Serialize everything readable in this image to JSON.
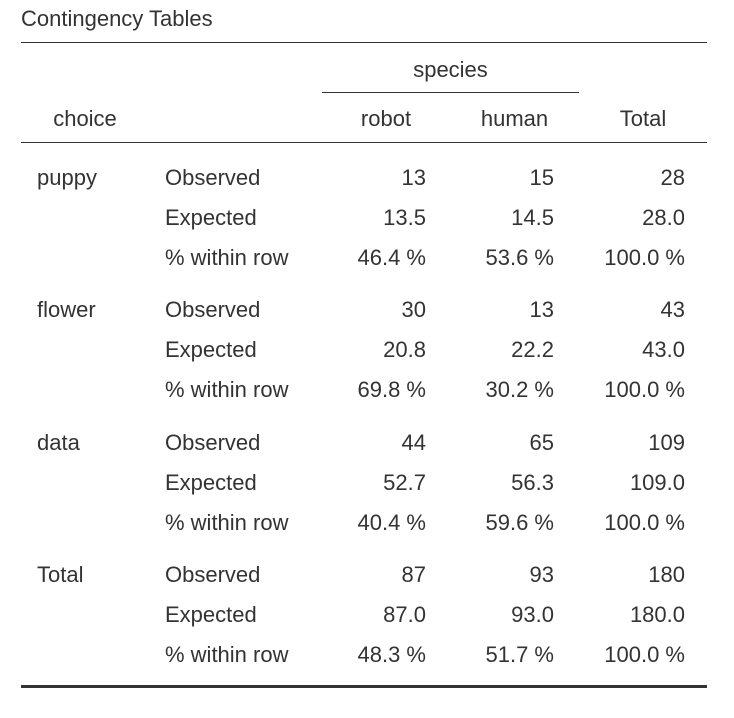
{
  "title": "Contingency Tables",
  "header": {
    "species": "species",
    "choice": "choice",
    "robot": "robot",
    "human": "human",
    "total": "Total"
  },
  "groups": [
    {
      "name": "puppy",
      "rows": [
        {
          "stat": "Observed",
          "robot": "13",
          "human": "15",
          "total": "28"
        },
        {
          "stat": "Expected",
          "robot": "13.5",
          "human": "14.5",
          "total": "28.0"
        },
        {
          "stat": "% within row",
          "robot": "46.4 %",
          "human": "53.6 %",
          "total": "100.0 %"
        }
      ]
    },
    {
      "name": "flower",
      "rows": [
        {
          "stat": "Observed",
          "robot": "30",
          "human": "13",
          "total": "43"
        },
        {
          "stat": "Expected",
          "robot": "20.8",
          "human": "22.2",
          "total": "43.0"
        },
        {
          "stat": "% within row",
          "robot": "69.8 %",
          "human": "30.2 %",
          "total": "100.0 %"
        }
      ]
    },
    {
      "name": "data",
      "rows": [
        {
          "stat": "Observed",
          "robot": "44",
          "human": "65",
          "total": "109"
        },
        {
          "stat": "Expected",
          "robot": "52.7",
          "human": "56.3",
          "total": "109.0"
        },
        {
          "stat": "% within row",
          "robot": "40.4 %",
          "human": "59.6 %",
          "total": "100.0 %"
        }
      ]
    },
    {
      "name": "Total",
      "rows": [
        {
          "stat": "Observed",
          "robot": "87",
          "human": "93",
          "total": "180"
        },
        {
          "stat": "Expected",
          "robot": "87.0",
          "human": "93.0",
          "total": "180.0"
        },
        {
          "stat": "% within row",
          "robot": "48.3 %",
          "human": "51.7 %",
          "total": "100.0 %"
        }
      ]
    }
  ]
}
